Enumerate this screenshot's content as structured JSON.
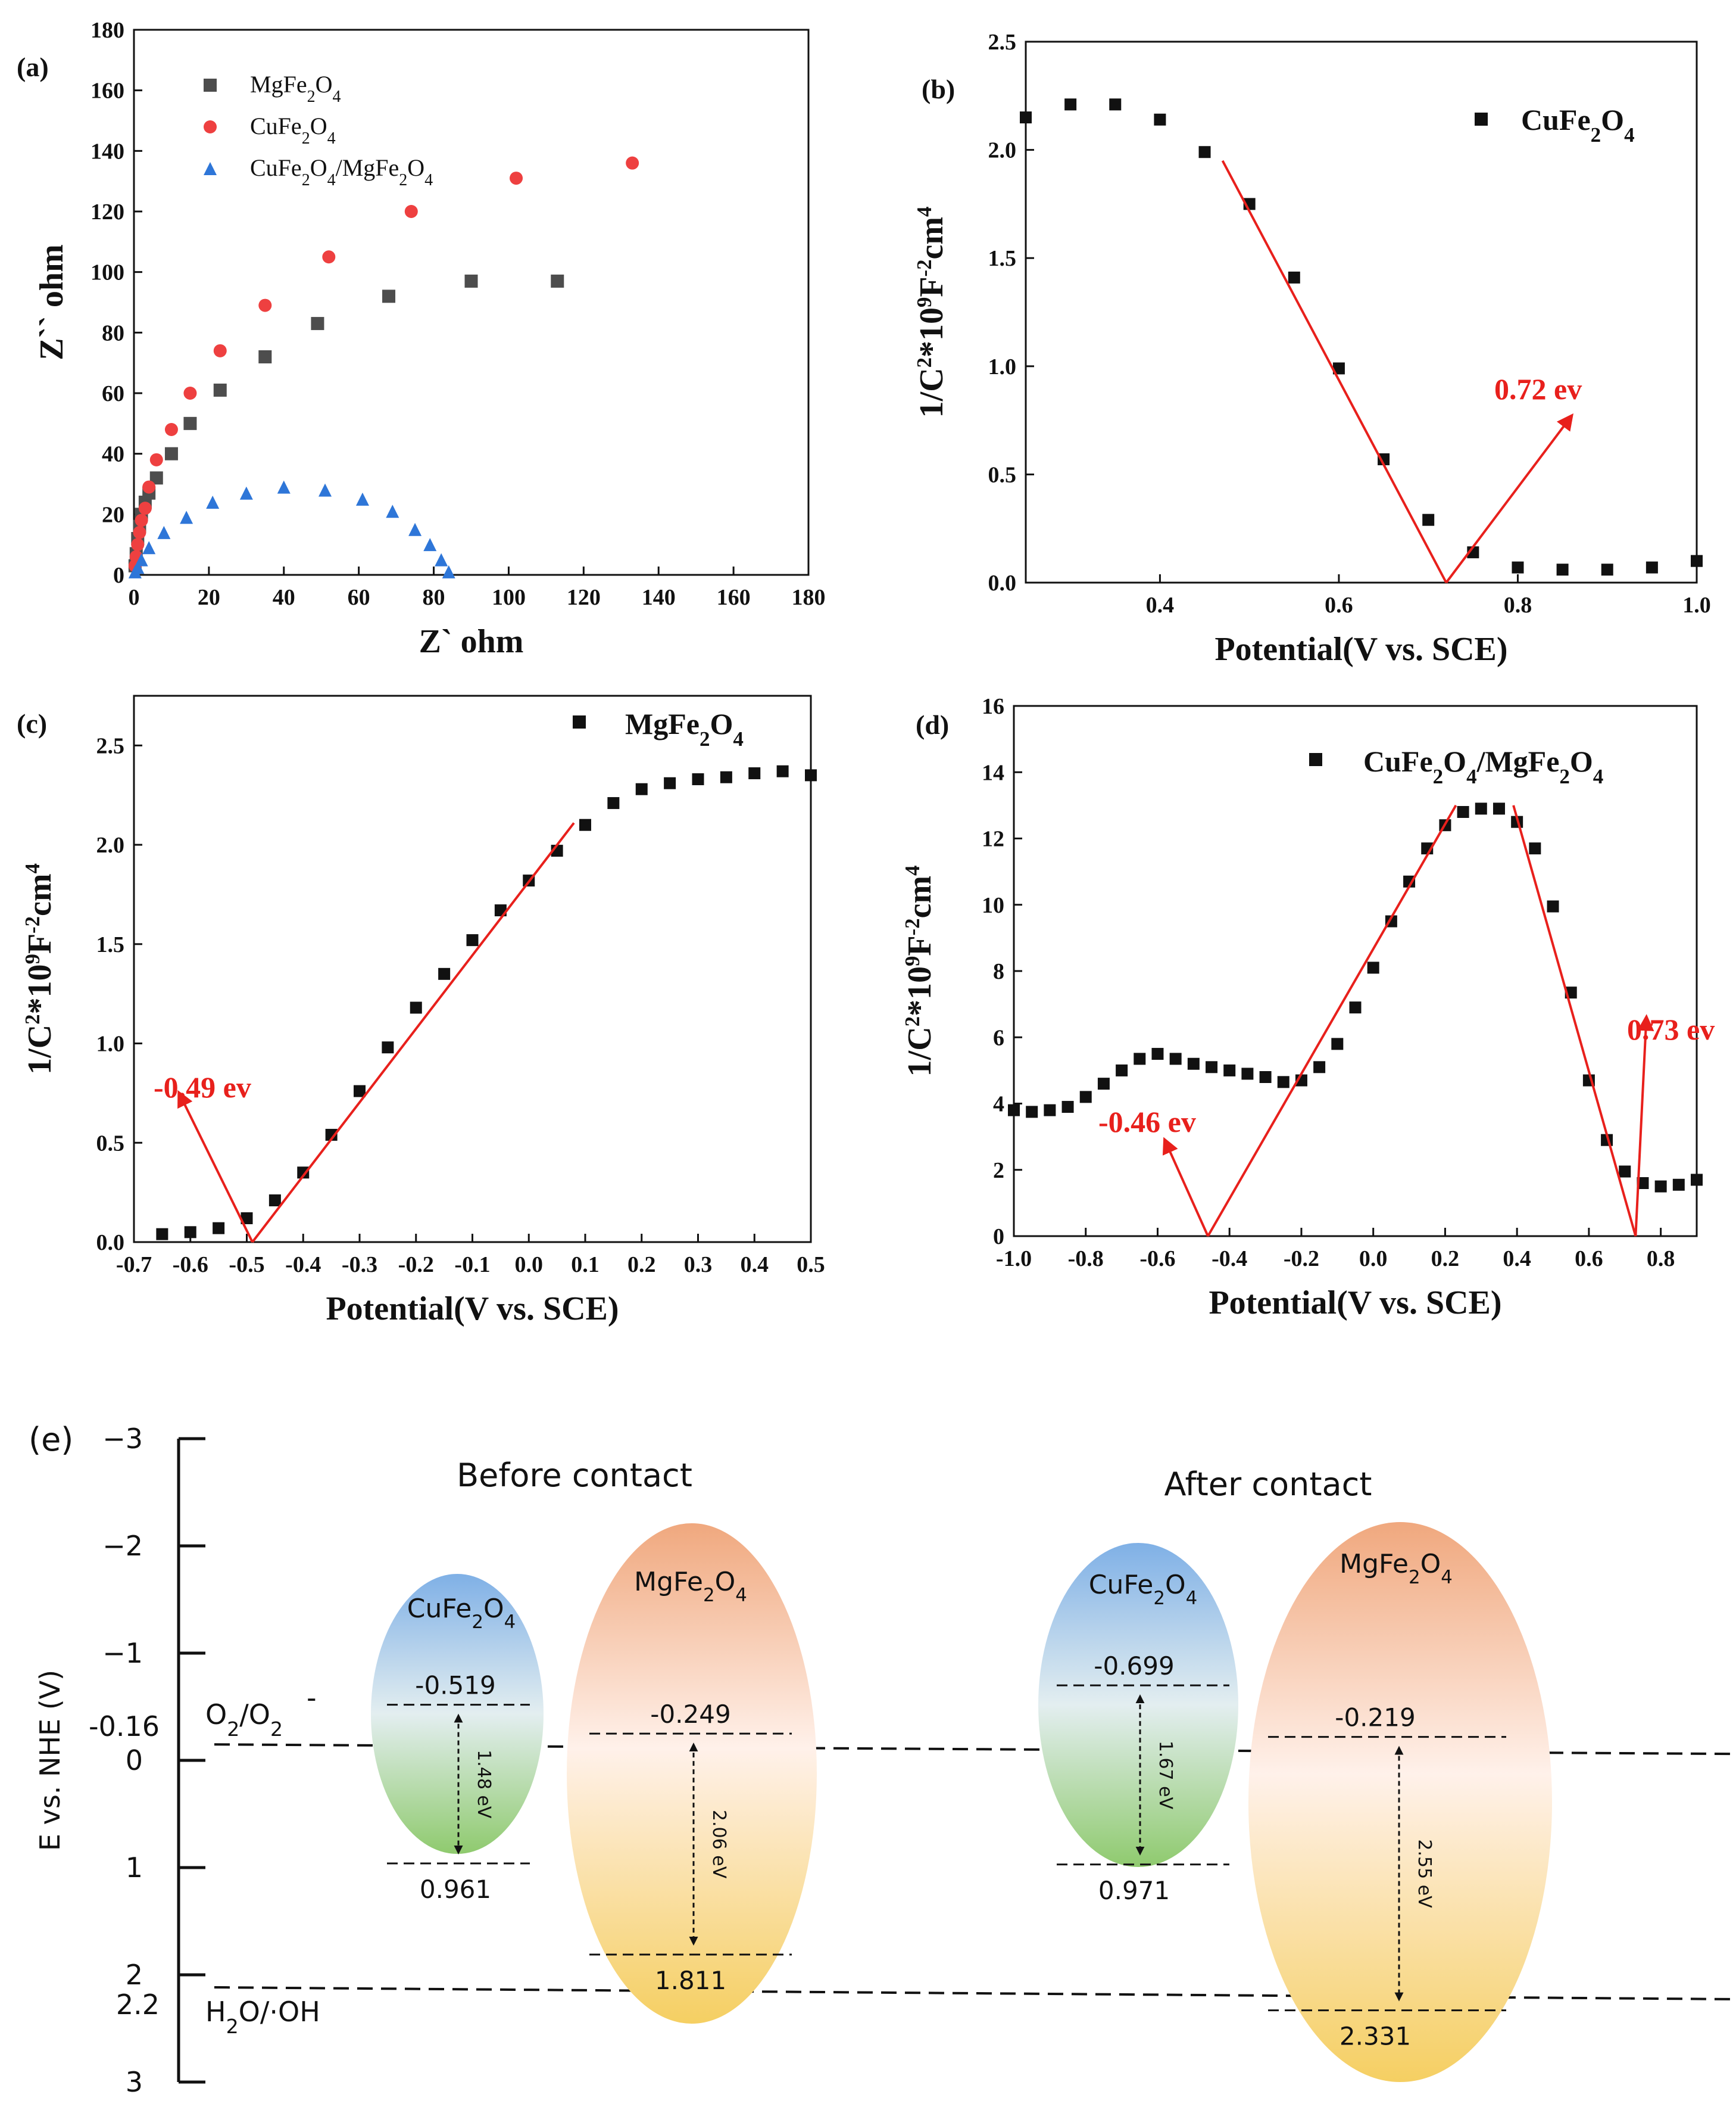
{
  "chart_data": [
    {
      "panel": "(a)",
      "type": "scatter",
      "xlabel": "Z` ohm",
      "ylabel": "Z`` ohm",
      "xlim": [
        0,
        180
      ],
      "ylim": [
        0,
        180
      ],
      "xticks": [
        0,
        20,
        40,
        60,
        80,
        100,
        120,
        140,
        160,
        180
      ],
      "yticks": [
        0,
        20,
        40,
        60,
        80,
        100,
        120,
        140,
        160,
        180
      ],
      "legend_position": "top-left",
      "series": [
        {
          "name": "MgFe2O4",
          "label_parts": [
            "MgFe",
            "2",
            "O",
            "4"
          ],
          "color": "#4d4d4d",
          "marker": "square",
          "x": [
            0.3,
            0.6,
            1,
            1.5,
            2,
            3,
            4,
            6,
            10,
            15,
            23,
            35,
            49,
            68,
            90,
            113
          ],
          "y": [
            3,
            7,
            12,
            16,
            20,
            24,
            27,
            32,
            40,
            50,
            61,
            72,
            83,
            92,
            97,
            97
          ]
        },
        {
          "name": "CuFe2O4",
          "label_parts": [
            "CuFe",
            "2",
            "O",
            "4"
          ],
          "color": "#ee4040",
          "marker": "circle",
          "x": [
            0.3,
            0.6,
            1,
            1.5,
            2,
            3,
            4,
            6,
            10,
            15,
            23,
            35,
            52,
            74,
            102,
            133
          ],
          "y": [
            3,
            6,
            10,
            14,
            18,
            22,
            29,
            38,
            48,
            60,
            74,
            89,
            105,
            120,
            131,
            136
          ]
        },
        {
          "name": "CuFe2O4/MgFe2O4",
          "label_parts": [
            "CuFe",
            "2",
            "O",
            "4",
            "/MgFe",
            "2",
            "O",
            "4"
          ],
          "color": "#2e76d8",
          "marker": "triangle",
          "x": [
            0.3,
            1,
            2,
            4,
            8,
            14,
            21,
            30,
            40,
            51,
            61,
            69,
            75,
            79,
            82,
            84
          ],
          "y": [
            1,
            2.5,
            5,
            9,
            14,
            19,
            24,
            27,
            29,
            28,
            25,
            21,
            15,
            10,
            5,
            1
          ]
        }
      ]
    },
    {
      "panel": "(b)",
      "type": "scatter",
      "xlabel": "Potential(V vs. SCE)",
      "ylabel": "1/C^2*10^9F^-2cm^4",
      "xlim": [
        0.25,
        1.0
      ],
      "ylim": [
        0,
        2.5
      ],
      "xticks": [
        0.4,
        0.6,
        0.8,
        1.0
      ],
      "xtick_labels": [
        "0.4",
        "0.6",
        "0.8",
        "1.0"
      ],
      "yticks": [
        0,
        0.5,
        1.0,
        1.5,
        2.0,
        2.5
      ],
      "ytick_labels": [
        "0.0",
        "0.5",
        "1.0",
        "1.5",
        "2.0",
        "2.5"
      ],
      "legend": "CuFe2O4",
      "legend_parts": [
        "CuFe",
        "2",
        "O",
        "4"
      ],
      "legend_position": "top-right",
      "x": [
        0.25,
        0.3,
        0.35,
        0.4,
        0.45,
        0.5,
        0.55,
        0.6,
        0.65,
        0.7,
        0.75,
        0.8,
        0.85,
        0.9,
        0.95,
        1.0
      ],
      "y": [
        2.15,
        2.21,
        2.21,
        2.14,
        1.99,
        1.75,
        1.41,
        0.99,
        0.57,
        0.29,
        0.14,
        0.07,
        0.06,
        0.06,
        0.07,
        0.1
      ],
      "fit_lines": [
        [
          [
            0.47,
            1.95
          ],
          [
            0.72,
            0.0
          ]
        ]
      ],
      "annotations": [
        {
          "text": "0.72 ev",
          "x": 0.72,
          "y": 0.0,
          "arrow_to": [
            0.86,
            0.77
          ]
        }
      ]
    },
    {
      "panel": "(c)",
      "type": "scatter",
      "xlabel": "Potential(V vs. SCE)",
      "ylabel": "1/C^2*10^9F^-2cm^4",
      "xlim": [
        -0.7,
        0.5
      ],
      "ylim": [
        0,
        2.75
      ],
      "xticks": [
        -0.7,
        -0.6,
        -0.5,
        -0.4,
        -0.3,
        -0.2,
        -0.1,
        0.0,
        0.1,
        0.2,
        0.3,
        0.4,
        0.5
      ],
      "xtick_labels": [
        "-0.7",
        "-0.6",
        "-0.5",
        "-0.4",
        "-0.3",
        "-0.2",
        "-0.1",
        "0.0",
        "0.1",
        "0.2",
        "0.3",
        "0.4",
        "0.5"
      ],
      "yticks": [
        0,
        0.5,
        1.0,
        1.5,
        2.0,
        2.5
      ],
      "ytick_labels": [
        "0.0",
        "0.5",
        "1.0",
        "1.5",
        "2.0",
        "2.5"
      ],
      "legend": "MgFe2O4",
      "legend_parts": [
        "MgFe",
        "2",
        "O",
        "4"
      ],
      "legend_position": "top-right",
      "x": [
        -0.65,
        -0.6,
        -0.55,
        -0.5,
        -0.45,
        -0.4,
        -0.35,
        -0.3,
        -0.25,
        -0.2,
        -0.15,
        -0.1,
        -0.05,
        0.0,
        0.05,
        0.1,
        0.15,
        0.2,
        0.25,
        0.3,
        0.35,
        0.4,
        0.45,
        0.5
      ],
      "y": [
        0.04,
        0.05,
        0.07,
        0.12,
        0.21,
        0.35,
        0.54,
        0.76,
        0.98,
        1.18,
        1.35,
        1.52,
        1.67,
        1.82,
        1.97,
        2.1,
        2.21,
        2.28,
        2.31,
        2.33,
        2.34,
        2.36,
        2.37,
        2.35
      ],
      "fit_lines": [
        [
          [
            -0.49,
            0.0
          ],
          [
            0.08,
            2.11
          ]
        ]
      ],
      "annotations": [
        {
          "text": "-0.49 ev",
          "x": -0.49,
          "y": 0.0,
          "arrow_to": [
            -0.62,
            0.75
          ]
        }
      ]
    },
    {
      "panel": "(d)",
      "type": "scatter",
      "xlabel": "Potential(V vs. SCE)",
      "ylabel": "1/C^2*10^9F^-2cm^4",
      "xlim": [
        -1.0,
        0.9
      ],
      "ylim": [
        0,
        16
      ],
      "xticks": [
        -1.0,
        -0.8,
        -0.6,
        -0.4,
        -0.2,
        0.0,
        0.2,
        0.4,
        0.6,
        0.8
      ],
      "xtick_labels": [
        "-1.0",
        "-0.8",
        "-0.6",
        "-0.4",
        "-0.2",
        "0.0",
        "0.2",
        "0.4",
        "0.6",
        "0.8"
      ],
      "yticks": [
        0,
        2,
        4,
        6,
        8,
        10,
        12,
        14,
        16
      ],
      "ytick_labels": [
        "0",
        "2",
        "4",
        "6",
        "8",
        "10",
        "12",
        "14",
        "16"
      ],
      "legend": "CuFe2O4/MgFe2O4",
      "legend_parts": [
        "CuFe",
        "2",
        "O",
        "4",
        "/MgFe",
        "2",
        "O",
        "4"
      ],
      "legend_position": "top-right",
      "x": [
        -1.0,
        -0.95,
        -0.9,
        -0.85,
        -0.8,
        -0.75,
        -0.7,
        -0.65,
        -0.6,
        -0.55,
        -0.5,
        -0.45,
        -0.4,
        -0.35,
        -0.3,
        -0.25,
        -0.2,
        -0.15,
        -0.1,
        -0.05,
        0.0,
        0.05,
        0.1,
        0.15,
        0.2,
        0.25,
        0.3,
        0.35,
        0.4,
        0.45,
        0.5,
        0.55,
        0.6,
        0.65,
        0.7,
        0.75,
        0.8,
        0.85,
        0.9
      ],
      "y": [
        3.8,
        3.75,
        3.8,
        3.9,
        4.2,
        4.6,
        5.0,
        5.35,
        5.5,
        5.35,
        5.2,
        5.1,
        5.0,
        4.9,
        4.8,
        4.65,
        4.7,
        5.1,
        5.8,
        6.9,
        8.1,
        9.5,
        10.7,
        11.7,
        12.4,
        12.8,
        12.9,
        12.9,
        12.5,
        11.7,
        9.95,
        7.35,
        4.7,
        2.9,
        1.95,
        1.6,
        1.5,
        1.55,
        1.7
      ],
      "fit_lines": [
        [
          [
            -0.46,
            0.0
          ],
          [
            0.23,
            13.0
          ]
        ],
        [
          [
            0.39,
            13.0
          ],
          [
            0.73,
            0.0
          ]
        ]
      ],
      "annotations": [
        {
          "text": "-0.46 ev",
          "x": -0.46,
          "y": 0.0,
          "arrow_to": [
            -0.58,
            2.9
          ]
        },
        {
          "text": "0.73 ev",
          "x": 0.73,
          "y": 0.0,
          "arrow_to": [
            0.76,
            6.6
          ]
        }
      ]
    },
    {
      "panel": "(e)",
      "type": "diagram",
      "ylabel": "E vs. NHE (V)",
      "ylim": [
        -3,
        3
      ],
      "yticks": [
        -3,
        -2,
        -1,
        0,
        1,
        2,
        3
      ],
      "ytick_labels": [
        "−3",
        "−2",
        "−1",
        "0",
        "1",
        "2",
        "3"
      ],
      "reference_levels": [
        {
          "value": -0.16,
          "label": "-0.16",
          "name": "O2/O2-"
        },
        {
          "value": 2.2,
          "label": "2.2",
          "name": "H2O/·OH"
        }
      ],
      "groups": [
        {
          "title": "Before contact",
          "materials": [
            {
              "name": "CuFe2O4",
              "name_parts": [
                "CuFe",
                "2",
                "O",
                "4"
              ],
              "cb": -0.519,
              "vb": 0.961,
              "cb_label": "-0.519",
              "vb_label": "0.961",
              "gap": "1.48 eV",
              "color_top": "#7fb0e6",
              "color_bottom": "#8fca6e"
            },
            {
              "name": "MgFe2O4",
              "name_parts": [
                "MgFe",
                "2",
                "O",
                "4"
              ],
              "cb": -0.249,
              "vb": 1.811,
              "cb_label": "-0.249",
              "vb_label": "1.811",
              "gap": "2.06 eV",
              "color_top": "#f0a87e",
              "color_bottom": "#f5cf62"
            }
          ]
        },
        {
          "title": "After contact",
          "materials": [
            {
              "name": "CuFe2O4",
              "name_parts": [
                "CuFe",
                "2",
                "O",
                "4"
              ],
              "cb": -0.699,
              "vb": 0.971,
              "cb_label": "-0.699",
              "vb_label": "0.971",
              "gap": "1.67 eV",
              "color_top": "#7fb0e6",
              "color_bottom": "#8fca6e"
            },
            {
              "name": "MgFe2O4",
              "name_parts": [
                "MgFe",
                "2",
                "O",
                "4"
              ],
              "cb": -0.219,
              "vb": 2.331,
              "cb_label": "-0.219",
              "vb_label": "2.331",
              "gap": "2.55 eV",
              "color_top": "#f0a87e",
              "color_bottom": "#f5cf62"
            }
          ]
        }
      ]
    }
  ]
}
